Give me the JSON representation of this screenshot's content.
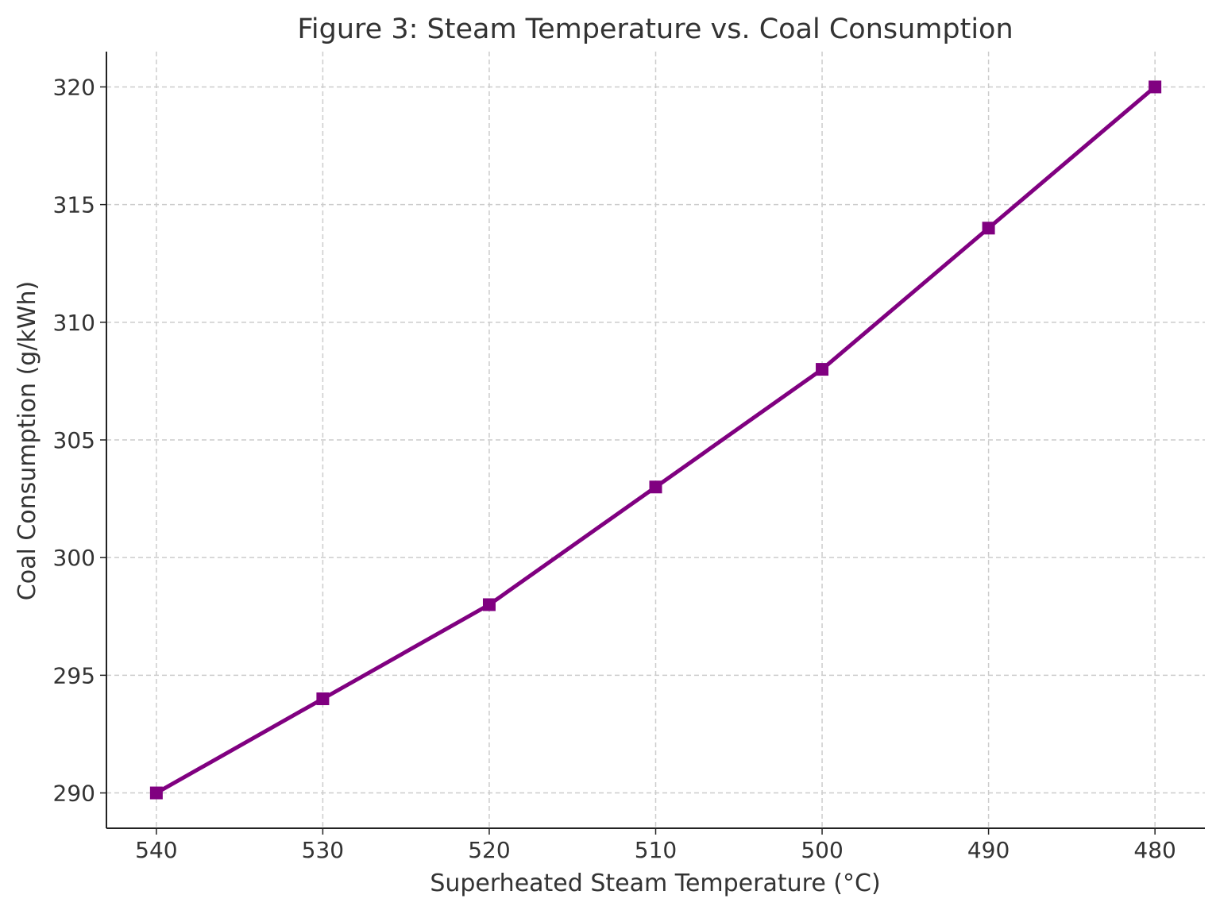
{
  "chart_data": {
    "type": "line",
    "title": "Figure 3: Steam Temperature vs. Coal Consumption",
    "xlabel": "Superheated Steam Temperature (°C)",
    "ylabel": "Coal Consumption (g/kWh)",
    "x": [
      540,
      530,
      520,
      510,
      500,
      490,
      480
    ],
    "series": [
      {
        "values": [
          290,
          294,
          298,
          303,
          308,
          314,
          320
        ],
        "color": "#800080",
        "marker": "square"
      }
    ],
    "xlim": [
      543,
      477
    ],
    "x_inverted": true,
    "ylim": [
      288.5,
      321.5
    ],
    "xticks": [
      "540",
      "530",
      "520",
      "510",
      "500",
      "490",
      "480"
    ],
    "yticks": [
      "290",
      "295",
      "300",
      "305",
      "310",
      "315",
      "320"
    ],
    "grid": true,
    "legend": "none"
  }
}
